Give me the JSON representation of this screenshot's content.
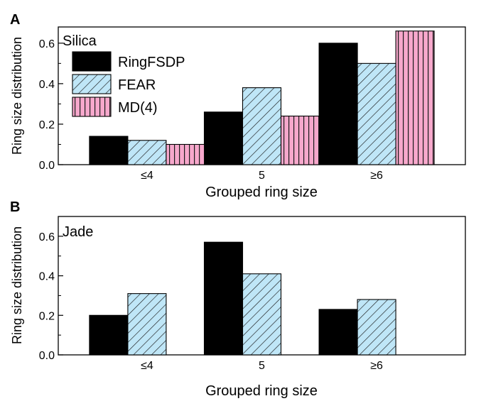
{
  "chart_data": [
    {
      "type": "bar",
      "panel_label": "A",
      "inset_label": "Silica",
      "categories": [
        "≤4",
        "5",
        "≥6"
      ],
      "xlabel": "Grouped ring size",
      "ylabel": "Ring size distribution",
      "ylim": [
        0,
        0.68
      ],
      "yticks": [
        "0.0",
        "0.2",
        "0.4",
        "0.6"
      ],
      "legend_position": "top-left",
      "series": [
        {
          "name": "RingFSDP",
          "fill": "#000000",
          "pattern": "solid",
          "values": [
            0.14,
            0.26,
            0.6
          ]
        },
        {
          "name": "FEAR",
          "fill": "#bfe6f7",
          "pattern": "diagonal",
          "values": [
            0.12,
            0.38,
            0.5
          ]
        },
        {
          "name": "MD(4)",
          "fill": "#f7a8cc",
          "pattern": "vertical",
          "values": [
            0.1,
            0.24,
            0.66
          ]
        }
      ]
    },
    {
      "type": "bar",
      "panel_label": "B",
      "inset_label": "Jade",
      "categories": [
        "≤4",
        "5",
        "≥6"
      ],
      "xlabel": "Grouped ring size",
      "ylabel": "Ring size distribution",
      "ylim": [
        0,
        0.7
      ],
      "yticks": [
        "0.0",
        "0.2",
        "0.4",
        "0.6"
      ],
      "series": [
        {
          "name": "RingFSDP",
          "fill": "#000000",
          "pattern": "solid",
          "values": [
            0.2,
            0.57,
            0.23
          ]
        },
        {
          "name": "FEAR",
          "fill": "#bfe6f7",
          "pattern": "diagonal",
          "values": [
            0.31,
            0.41,
            0.28
          ]
        }
      ]
    }
  ]
}
